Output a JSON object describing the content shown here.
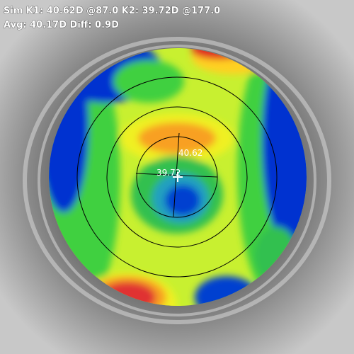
{
  "header": {
    "line1": "Sim K1: 40.62D @87.0 K2: 39.72D @177.0",
    "line2": "Avg: 40.17D Diff: 0.9D"
  },
  "map": {
    "k1_label": "40.62",
    "k2_label": "39.72"
  }
}
